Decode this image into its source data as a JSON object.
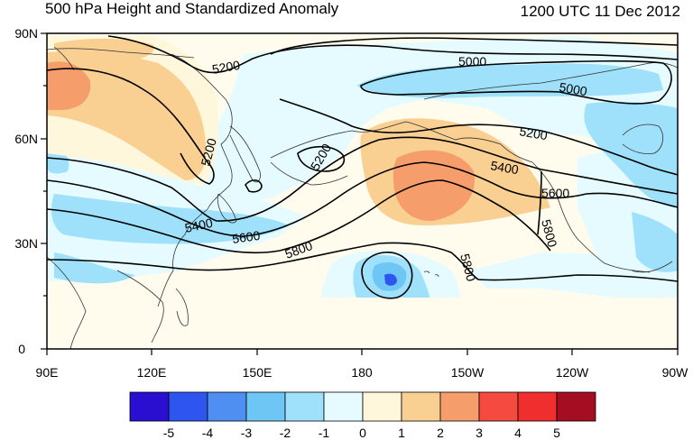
{
  "title": "500 hPa Height and Standardized Anomaly",
  "valid_time": "1200 UTC 11 Dec 2012",
  "axes": {
    "lat_ticks": [
      "90N",
      "60N",
      "30N",
      "0"
    ],
    "lon_ticks": [
      "90E",
      "120E",
      "150E",
      "180",
      "150W",
      "120W",
      "90W"
    ]
  },
  "contour_labels": [
    "5000",
    "5000",
    "5200",
    "5200",
    "5200",
    "5200",
    "5400",
    "5400",
    "5600",
    "5600",
    "5800",
    "5800",
    "5800"
  ],
  "colorbar": {
    "labels": [
      "-5",
      "-4",
      "-3",
      "-2",
      "-1",
      "0",
      "1",
      "2",
      "3",
      "4",
      "5"
    ],
    "colors": [
      "#2a0fd0",
      "#2f55f0",
      "#4f8ff2",
      "#6ec6f5",
      "#9fe0fa",
      "#e6fbff",
      "#fff7dc",
      "#f9cf92",
      "#f59e6c",
      "#f54a40",
      "#f02e2e",
      "#a40d22"
    ]
  },
  "colors": {
    "coast": "#333333",
    "contour": "#000000",
    "background": "#ffffff"
  }
}
